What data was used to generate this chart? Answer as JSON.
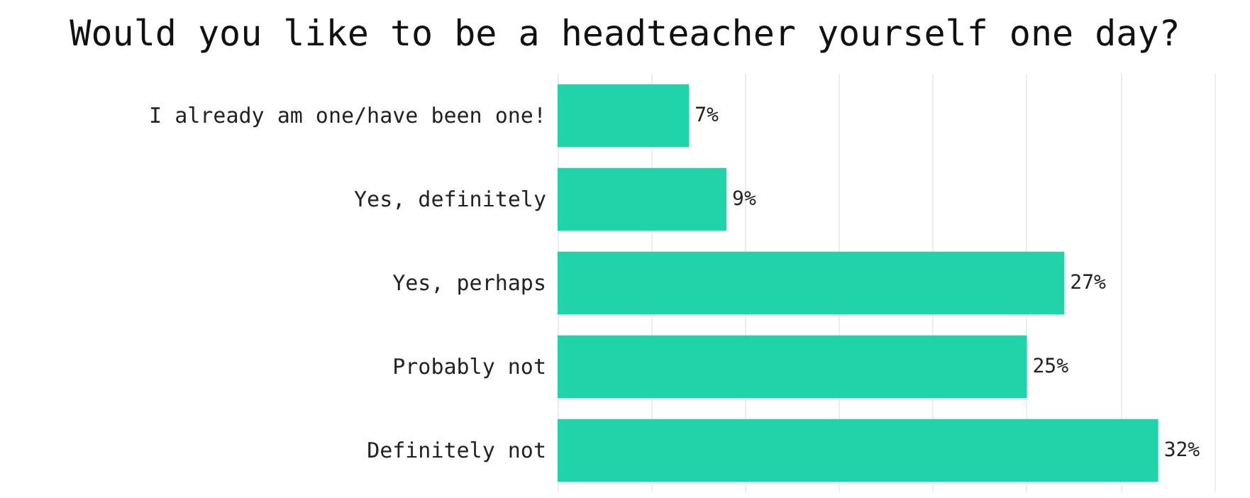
{
  "chart_data": {
    "type": "bar",
    "orientation": "horizontal",
    "title": "Would you like to be a headteacher yourself one day?",
    "categories": [
      "I already am one/have been one!",
      "Yes, definitely",
      "Yes, perhaps",
      "Probably not",
      "Definitely not"
    ],
    "values": [
      7,
      9,
      27,
      25,
      32
    ],
    "color": "#20d3a8",
    "data_labels": true,
    "value_labels": [
      "7%",
      "9%",
      "27%",
      "25%",
      "32%"
    ],
    "xlim": [
      0,
      35
    ],
    "xticks": [
      {
        "value": 0,
        "label": null
      },
      {
        "value": 5,
        "label": null
      },
      {
        "value": 10,
        "label": null
      },
      {
        "value": 15,
        "label": null
      },
      {
        "value": 20,
        "label": null
      },
      {
        "value": 25,
        "label": null
      },
      {
        "value": 30,
        "label": null
      },
      {
        "value": 35,
        "label": null
      }
    ],
    "grid": "x",
    "tick_labels": "y"
  }
}
